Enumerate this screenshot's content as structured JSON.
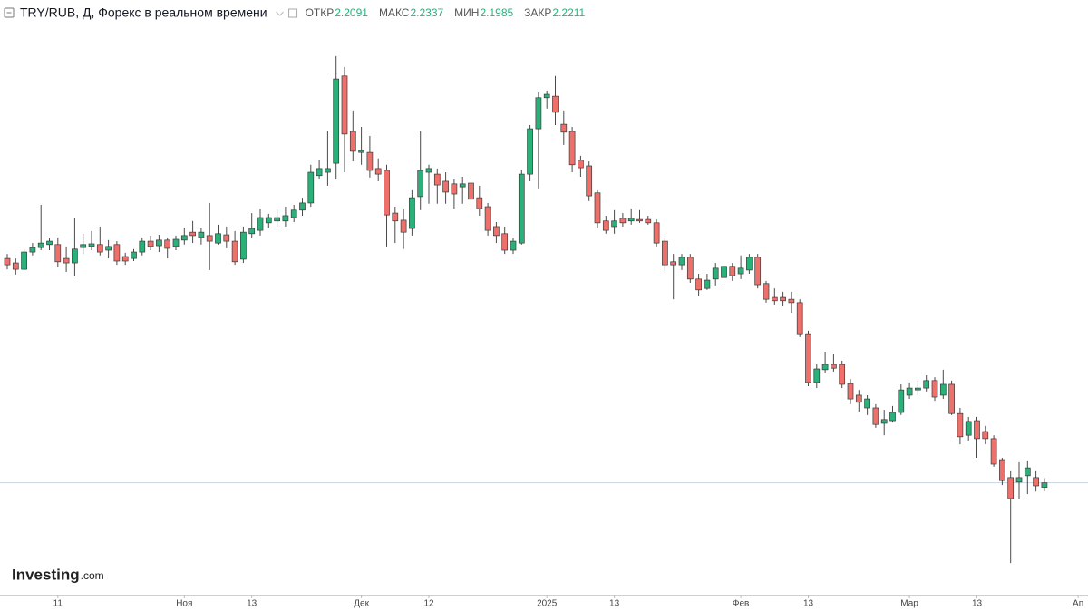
{
  "chart_data": {
    "type": "candlestick",
    "title": "TRY/RUB, Д, Форекс в реальном времени",
    "ohlc_labels": {
      "open": "ОТКР",
      "high": "МАКС",
      "low": "МИН",
      "close": "ЗАКР"
    },
    "logo": {
      "brand": "Investing",
      "suffix": ".com"
    },
    "up_color": "#2bb07a",
    "down_color": "#ee706b",
    "price_line": true,
    "ylim": [
      1.925,
      3.413
    ],
    "categories": [
      null,
      null,
      null,
      null,
      null,
      null,
      "11",
      null,
      null,
      null,
      null,
      null,
      null,
      null,
      null,
      null,
      null,
      null,
      null,
      null,
      null,
      "Ноя",
      null,
      null,
      null,
      null,
      null,
      null,
      null,
      "13",
      null,
      null,
      null,
      null,
      null,
      null,
      null,
      null,
      null,
      null,
      null,
      null,
      "Дек",
      null,
      null,
      null,
      null,
      null,
      null,
      null,
      "12",
      null,
      null,
      null,
      null,
      null,
      null,
      null,
      null,
      null,
      null,
      null,
      null,
      null,
      "2025",
      null,
      null,
      null,
      null,
      null,
      null,
      null,
      "13",
      null,
      null,
      null,
      null,
      null,
      null,
      null,
      null,
      null,
      null,
      null,
      null,
      null,
      null,
      "Фев",
      null,
      null,
      null,
      null,
      null,
      null,
      null,
      "13",
      null,
      null,
      null,
      null,
      null,
      null,
      null,
      null,
      null,
      null,
      null,
      "Мар",
      null,
      null,
      null,
      null,
      null,
      null,
      null,
      "13",
      null,
      null,
      null,
      null,
      null,
      null,
      null,
      null,
      null,
      null,
      null,
      "Ап"
    ],
    "open": [
      2.82,
      2.808,
      2.791,
      2.837,
      2.849,
      2.857,
      2.857,
      2.82,
      2.808,
      2.849,
      2.852,
      2.857,
      2.842,
      2.857,
      2.825,
      2.82,
      2.837,
      2.866,
      2.854,
      2.869,
      2.852,
      2.869,
      2.89,
      2.876,
      2.881,
      2.861,
      2.883,
      2.866,
      2.818,
      2.886,
      2.895,
      2.915,
      2.92,
      2.92,
      2.929,
      2.949,
      2.968,
      3.041,
      3.05,
      3.074,
      3.307,
      3.159,
      3.103,
      3.103,
      3.06,
      3.055,
      2.941,
      2.922,
      2.9,
      2.985,
      3.05,
      3.045,
      3.026,
      3.019,
      3.011,
      3.021,
      2.982,
      2.958,
      2.905,
      2.886,
      2.842,
      2.861,
      3.045,
      3.166,
      3.249,
      3.253,
      3.178,
      3.159,
      3.082,
      3.067,
      2.995,
      2.92,
      2.905,
      2.927,
      2.92,
      2.924,
      2.924,
      2.915,
      2.866,
      2.811,
      2.803,
      2.823,
      2.765,
      2.74,
      2.765,
      2.769,
      2.799,
      2.779,
      2.789,
      2.823,
      2.753,
      2.716,
      2.716,
      2.711,
      2.702,
      2.619,
      2.489,
      2.523,
      2.537,
      2.537,
      2.486,
      2.455,
      2.421,
      2.421,
      2.38,
      2.387,
      2.409,
      2.455,
      2.469,
      2.474,
      2.494,
      2.455,
      2.484,
      2.406,
      2.348,
      2.387,
      2.358,
      2.339,
      2.283,
      2.235,
      2.223,
      2.24,
      2.235,
      2.2091,
      null,
      null,
      null,
      null
    ],
    "high": [
      2.832,
      2.82,
      2.845,
      2.861,
      2.963,
      2.876,
      2.876,
      2.852,
      2.929,
      2.886,
      2.893,
      2.905,
      2.869,
      2.866,
      2.835,
      2.845,
      2.876,
      2.881,
      2.883,
      2.876,
      2.881,
      2.9,
      2.92,
      2.9,
      2.968,
      2.91,
      2.905,
      2.893,
      2.905,
      2.941,
      2.953,
      2.939,
      2.949,
      2.958,
      2.963,
      2.982,
      3.07,
      3.084,
      3.159,
      3.36,
      3.331,
      3.215,
      3.171,
      3.147,
      3.087,
      3.07,
      2.958,
      2.953,
      3.002,
      3.159,
      3.07,
      3.06,
      3.05,
      3.031,
      3.038,
      3.036,
      3.014,
      2.968,
      2.917,
      2.905,
      2.876,
      3.055,
      3.176,
      3.263,
      3.268,
      3.307,
      3.215,
      3.171,
      3.094,
      3.079,
      3.002,
      2.934,
      2.949,
      2.941,
      2.953,
      2.949,
      2.934,
      2.924,
      2.876,
      2.832,
      2.832,
      2.832,
      2.779,
      2.779,
      2.808,
      2.813,
      2.808,
      2.828,
      2.832,
      2.832,
      2.76,
      2.74,
      2.731,
      2.731,
      2.711,
      2.627,
      2.537,
      2.571,
      2.566,
      2.547,
      2.498,
      2.469,
      2.455,
      2.431,
      2.416,
      2.426,
      2.484,
      2.489,
      2.494,
      2.508,
      2.503,
      2.523,
      2.494,
      2.421,
      2.397,
      2.397,
      2.373,
      2.348,
      2.288,
      2.252,
      2.276,
      2.281,
      2.252,
      2.2337,
      null,
      null,
      null,
      null
    ],
    "low": [
      2.791,
      2.777,
      2.789,
      2.828,
      2.842,
      2.842,
      2.796,
      2.784,
      2.772,
      2.832,
      2.842,
      2.828,
      2.82,
      2.803,
      2.803,
      2.813,
      2.828,
      2.842,
      2.837,
      2.82,
      2.842,
      2.857,
      2.861,
      2.857,
      2.789,
      2.857,
      2.847,
      2.803,
      2.808,
      2.876,
      2.881,
      2.9,
      2.905,
      2.905,
      2.917,
      2.934,
      2.958,
      3.031,
      3.014,
      3.031,
      3.05,
      3.079,
      3.07,
      3.036,
      3.026,
      2.852,
      2.861,
      2.845,
      2.881,
      2.949,
      2.966,
      2.966,
      2.966,
      2.953,
      2.966,
      2.953,
      2.934,
      2.881,
      2.861,
      2.832,
      2.832,
      2.857,
      3.026,
      3.007,
      3.22,
      3.176,
      3.123,
      3.05,
      3.038,
      2.973,
      2.9,
      2.886,
      2.886,
      2.905,
      2.91,
      2.915,
      2.91,
      2.852,
      2.784,
      2.711,
      2.789,
      2.755,
      2.721,
      2.736,
      2.748,
      2.74,
      2.76,
      2.765,
      2.779,
      2.74,
      2.702,
      2.697,
      2.692,
      2.675,
      2.61,
      2.479,
      2.474,
      2.513,
      2.518,
      2.474,
      2.431,
      2.411,
      2.402,
      2.368,
      2.348,
      2.382,
      2.402,
      2.445,
      2.455,
      2.465,
      2.44,
      2.445,
      2.402,
      2.324,
      2.334,
      2.288,
      2.324,
      2.264,
      2.215,
      2.007,
      2.179,
      2.191,
      2.198,
      2.1985,
      null,
      null,
      null,
      null
    ],
    "close": [
      2.803,
      2.791,
      2.837,
      2.849,
      2.861,
      2.866,
      2.811,
      2.808,
      2.845,
      2.857,
      2.859,
      2.837,
      2.852,
      2.813,
      2.813,
      2.837,
      2.866,
      2.852,
      2.869,
      2.847,
      2.871,
      2.881,
      2.881,
      2.89,
      2.866,
      2.886,
      2.866,
      2.811,
      2.89,
      2.9,
      2.929,
      2.929,
      2.929,
      2.934,
      2.949,
      2.968,
      3.05,
      3.06,
      3.06,
      3.299,
      3.152,
      3.106,
      3.108,
      3.055,
      3.045,
      2.936,
      2.92,
      2.89,
      2.982,
      3.055,
      3.06,
      3.016,
      2.997,
      2.992,
      3.019,
      2.978,
      2.953,
      2.895,
      2.881,
      2.842,
      2.866,
      3.045,
      3.166,
      3.249,
      3.258,
      3.21,
      3.157,
      3.07,
      3.062,
      2.987,
      2.915,
      2.895,
      2.92,
      2.915,
      2.927,
      2.92,
      2.915,
      2.861,
      2.803,
      2.803,
      2.823,
      2.765,
      2.736,
      2.762,
      2.794,
      2.799,
      2.774,
      2.794,
      2.823,
      2.75,
      2.711,
      2.707,
      2.707,
      2.702,
      2.619,
      2.489,
      2.525,
      2.537,
      2.527,
      2.484,
      2.445,
      2.436,
      2.445,
      2.377,
      2.39,
      2.409,
      2.469,
      2.474,
      2.474,
      2.494,
      2.45,
      2.484,
      2.406,
      2.344,
      2.385,
      2.339,
      2.339,
      2.271,
      2.227,
      2.179,
      2.235,
      2.261,
      2.213,
      2.2211,
      null,
      null,
      null,
      null
    ]
  }
}
